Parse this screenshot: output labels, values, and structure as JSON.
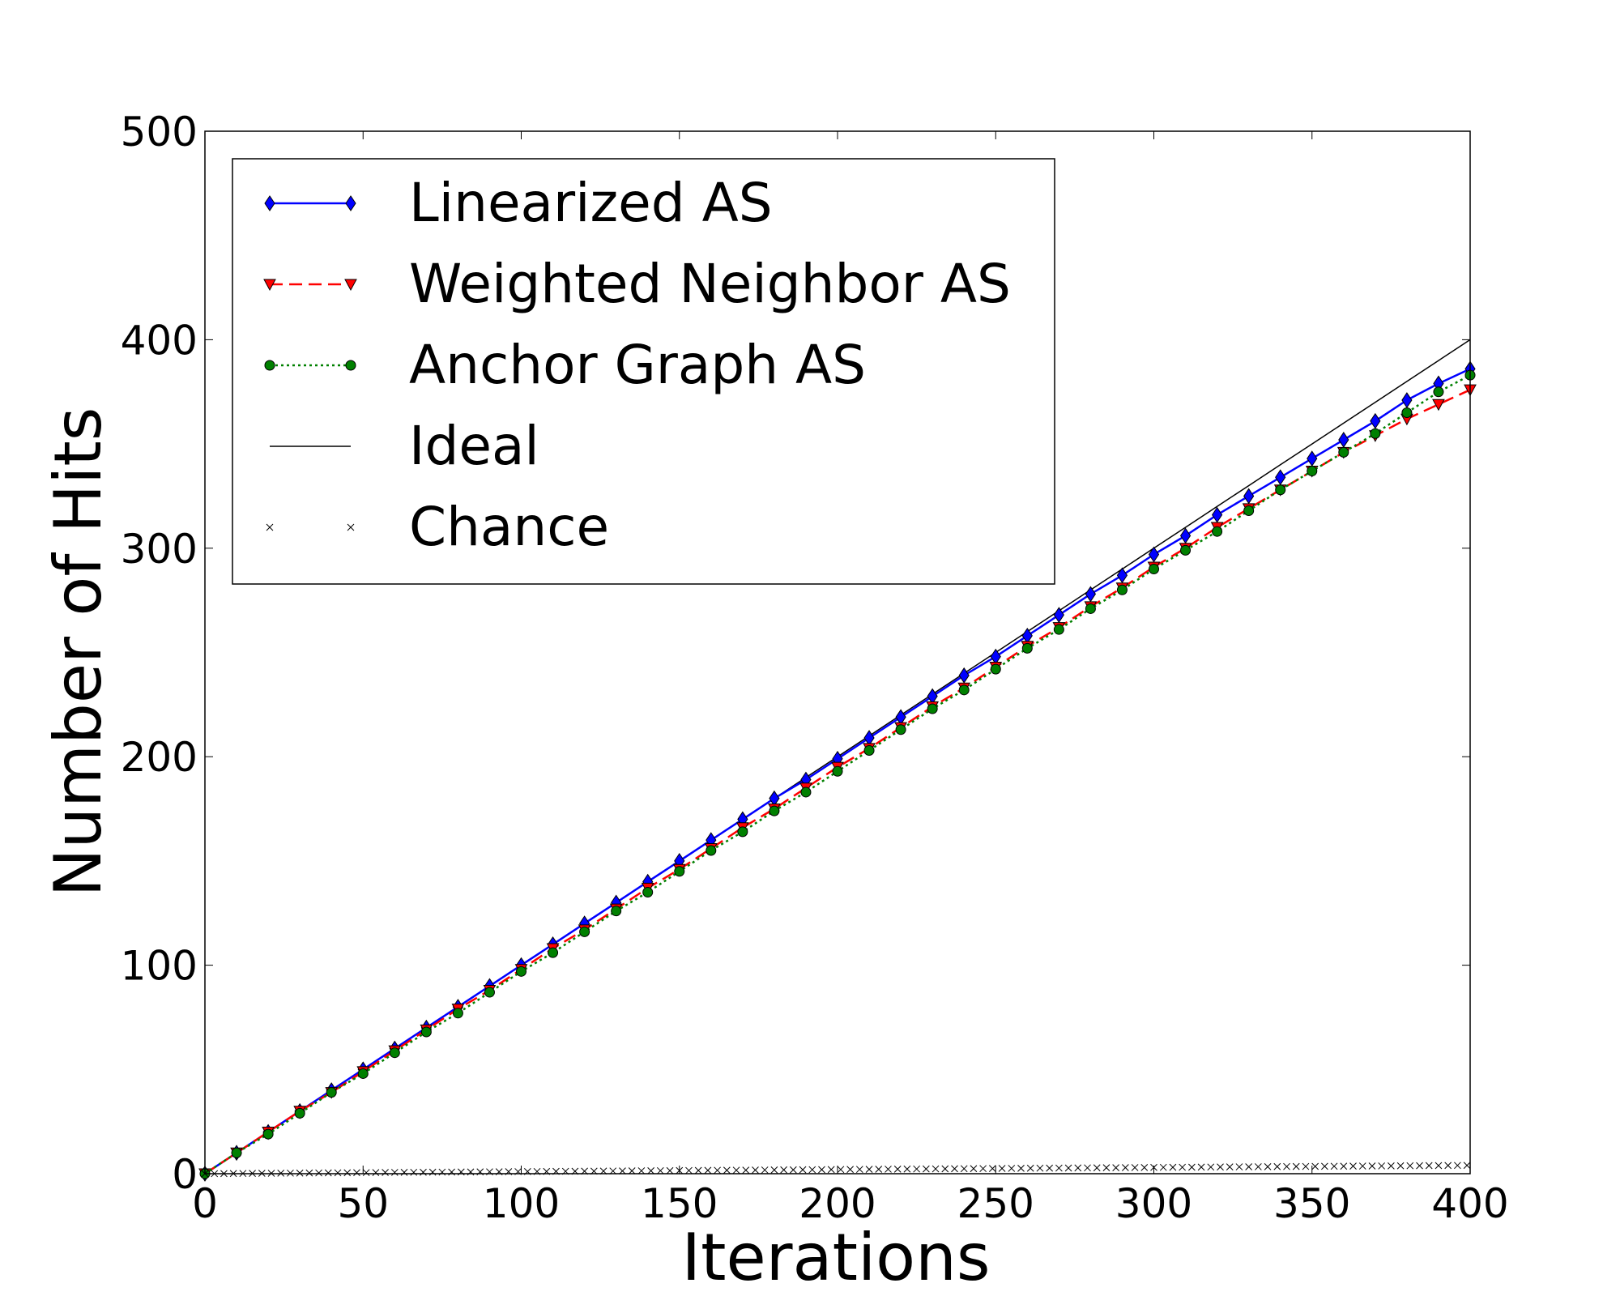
{
  "chart_data": {
    "type": "line",
    "title": "",
    "xlabel": "Iterations",
    "ylabel": "Number of Hits",
    "xlim": [
      0,
      400
    ],
    "ylim": [
      0,
      500
    ],
    "xticks": [
      0,
      50,
      100,
      150,
      200,
      250,
      300,
      350,
      400
    ],
    "yticks": [
      0,
      100,
      200,
      300,
      400,
      500
    ],
    "xtick_labels": [
      "0",
      "50",
      "100",
      "150",
      "200",
      "250",
      "300",
      "350",
      "400"
    ],
    "ytick_labels": [
      "0",
      "100",
      "200",
      "300",
      "400",
      "500"
    ],
    "grid": false,
    "legend_position": "top-left",
    "x": [
      0,
      10,
      20,
      30,
      40,
      50,
      60,
      70,
      80,
      90,
      100,
      110,
      120,
      130,
      140,
      150,
      160,
      170,
      180,
      190,
      200,
      210,
      220,
      230,
      240,
      250,
      260,
      270,
      280,
      290,
      300,
      310,
      320,
      330,
      340,
      350,
      360,
      370,
      380,
      390,
      400
    ],
    "series": [
      {
        "name": "Linearized AS",
        "color": "#0000ff",
        "line_style": "solid",
        "marker": "thin-diamond",
        "values": [
          0,
          10,
          20,
          30,
          40,
          50,
          60,
          70,
          80,
          90,
          100,
          110,
          120,
          130,
          140,
          150,
          160,
          170,
          180,
          189,
          199,
          209,
          219,
          229,
          239,
          248,
          258,
          268,
          278,
          287,
          297,
          306,
          316,
          325,
          334,
          343,
          352,
          361,
          371,
          379,
          386
        ]
      },
      {
        "name": "Weighted Neighbor AS",
        "color": "#ff0000",
        "line_style": "dashed",
        "marker": "triangle-down",
        "values": [
          0,
          10,
          20,
          30,
          39,
          49,
          59,
          69,
          79,
          88,
          98,
          108,
          117,
          127,
          137,
          146,
          156,
          166,
          175,
          185,
          195,
          204,
          214,
          224,
          233,
          243,
          253,
          262,
          272,
          281,
          291,
          300,
          310,
          319,
          328,
          337,
          346,
          354,
          362,
          369,
          376
        ]
      },
      {
        "name": "Anchor Graph AS",
        "color": "#008000",
        "line_style": "dotted",
        "marker": "circle",
        "values": [
          0,
          10,
          19,
          29,
          39,
          48,
          58,
          68,
          77,
          87,
          97,
          106,
          116,
          126,
          135,
          145,
          155,
          164,
          174,
          183,
          193,
          203,
          213,
          223,
          232,
          242,
          252,
          261,
          271,
          280,
          290,
          299,
          308,
          318,
          328,
          337,
          346,
          355,
          365,
          375,
          383
        ]
      },
      {
        "name": "Ideal",
        "color": "#000000",
        "line_style": "solid",
        "marker": "none",
        "values": [
          0,
          10,
          20,
          30,
          40,
          50,
          60,
          70,
          80,
          90,
          100,
          110,
          120,
          130,
          140,
          150,
          160,
          170,
          180,
          190,
          200,
          210,
          220,
          230,
          240,
          250,
          260,
          270,
          280,
          290,
          300,
          310,
          320,
          330,
          340,
          350,
          360,
          370,
          380,
          390,
          400
        ]
      },
      {
        "name": "Chance",
        "color": "#000000",
        "line_style": "none",
        "marker": "x",
        "marker_every": 3,
        "values": [
          0,
          0.1,
          0.2,
          0.3,
          0.4,
          0.5,
          0.6,
          0.7,
          0.8,
          0.9,
          1.0,
          1.1,
          1.2,
          1.3,
          1.4,
          1.5,
          1.6,
          1.7,
          1.8,
          1.9,
          2.0,
          2.1,
          2.2,
          2.3,
          2.4,
          2.5,
          2.6,
          2.7,
          2.8,
          2.9,
          3.0,
          3.1,
          3.2,
          3.3,
          3.4,
          3.5,
          3.6,
          3.7,
          3.8,
          3.9,
          4.0
        ]
      }
    ]
  }
}
